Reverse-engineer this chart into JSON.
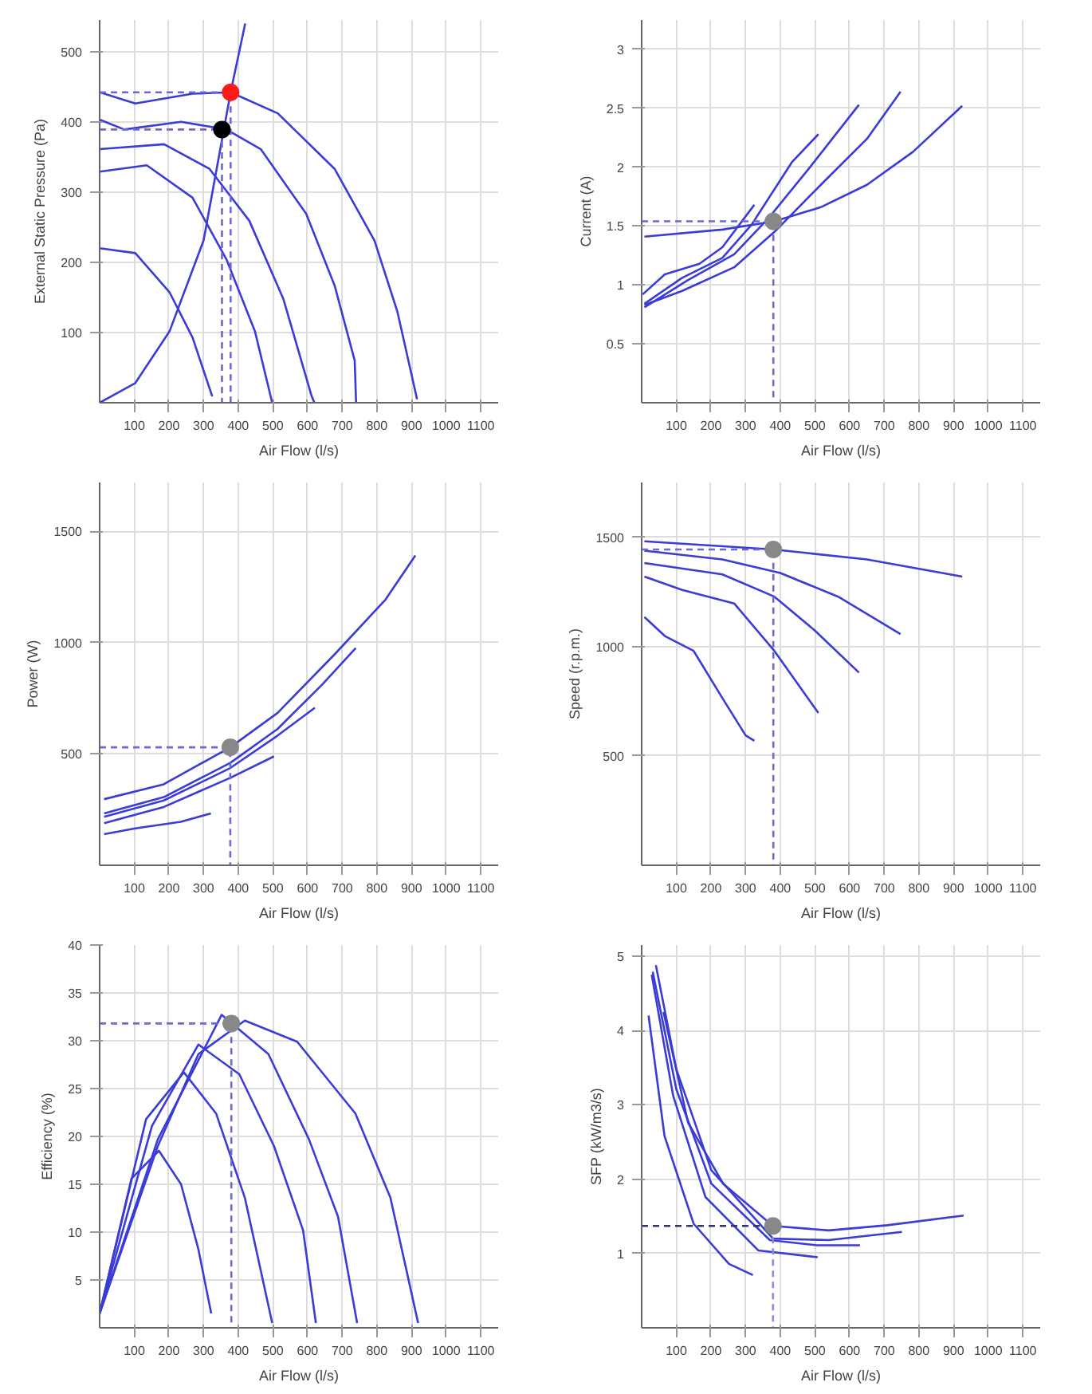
{
  "chart_data": [
    {
      "type": "line",
      "xlabel": "Air Flow (l/s)",
      "ylabel": "External Static Pressure (Pa)",
      "xlim": [
        0,
        1150
      ],
      "ylim": [
        0,
        545
      ],
      "xticks": [
        100,
        200,
        300,
        400,
        500,
        600,
        700,
        800,
        900,
        1000,
        1100
      ],
      "yticks": [
        100,
        200,
        300,
        400,
        500
      ],
      "grid": true,
      "marker": "none",
      "line_style": "solid",
      "series": [
        {
          "color": "#3b3bd6",
          "x": [
            0,
            103,
            268,
            378,
            514,
            678,
            793,
            859,
            916
          ],
          "values": [
            442,
            426,
            440,
            442,
            412,
            333,
            231,
            130,
            5
          ]
        },
        {
          "color": "#3b3bd6",
          "x": [
            0,
            71,
            235,
            366,
            465,
            596,
            678,
            736,
            740
          ],
          "values": [
            403,
            389,
            400,
            389,
            361,
            269,
            167,
            60,
            0
          ]
        },
        {
          "color": "#3b3bd6",
          "x": [
            0,
            186,
            317,
            432,
            530,
            612,
            620
          ],
          "values": [
            361,
            368,
            333,
            259,
            148,
            9,
            0
          ]
        },
        {
          "color": "#3b3bd6",
          "x": [
            0,
            136,
            268,
            366,
            448,
            498
          ],
          "values": [
            329,
            338,
            292,
            204,
            102,
            0
          ]
        },
        {
          "color": "#3b3bd6",
          "x": [
            0,
            103,
            202,
            268,
            325
          ],
          "values": [
            220,
            213,
            157,
            93,
            9
          ]
        },
        {
          "color": "#3b3bd6",
          "x": [
            0,
            103,
            202,
            300,
            378,
            420
          ],
          "values": [
            0,
            28,
            102,
            231,
            442,
            540
          ]
        },
        {
          "color": "#6a6ad0",
          "line_style": "dashed",
          "x": [
            0,
            378,
            378
          ],
          "values": [
            442,
            442,
            0
          ]
        },
        {
          "color": "#6a6ad0",
          "line_style": "dashed",
          "x": [
            0,
            353,
            353
          ],
          "values": [
            389,
            389,
            0
          ]
        },
        {
          "type": "scatter",
          "marker": "circle",
          "color": "#ff1a1a",
          "x": [
            378
          ],
          "values": [
            442
          ]
        },
        {
          "type": "scatter",
          "marker": "circle",
          "color": "#000000",
          "x": [
            353
          ],
          "values": [
            389
          ]
        }
      ]
    },
    {
      "type": "line",
      "xlabel": "Air Flow (l/s)",
      "ylabel": "Current (A)",
      "xlim": [
        0,
        1150
      ],
      "ylim": [
        0,
        3.25
      ],
      "xticks": [
        100,
        200,
        300,
        400,
        500,
        600,
        700,
        800,
        900,
        1000,
        1100
      ],
      "yticks": [
        0.5,
        1,
        1.5,
        2,
        2.5,
        3
      ],
      "grid": true,
      "marker": "none",
      "line_style": "solid",
      "series": [
        {
          "color": "#3b3bd6",
          "x": [
            8,
            233,
            383,
            517,
            650,
            783,
            925
          ],
          "values": [
            1.41,
            1.47,
            1.54,
            1.66,
            1.85,
            2.13,
            2.52
          ]
        },
        {
          "color": "#3b3bd6",
          "x": [
            8,
            117,
            267,
            383,
            517,
            650,
            747
          ],
          "values": [
            0.83,
            0.95,
            1.15,
            1.45,
            1.85,
            2.24,
            2.64
          ]
        },
        {
          "color": "#3b3bd6",
          "x": [
            8,
            133,
            267,
            367,
            483,
            627
          ],
          "values": [
            0.81,
            1.04,
            1.26,
            1.57,
            1.99,
            2.53
          ]
        },
        {
          "color": "#3b3bd6",
          "x": [
            8,
            117,
            233,
            317,
            433,
            510
          ],
          "values": [
            0.84,
            1.06,
            1.23,
            1.51,
            2.04,
            2.28
          ]
        },
        {
          "color": "#3b3bd6",
          "x": [
            3,
            67,
            167,
            233,
            325
          ],
          "values": [
            0.92,
            1.09,
            1.18,
            1.32,
            1.68
          ]
        },
        {
          "color": "#6a6ad0",
          "line_style": "dashed",
          "x": [
            0,
            380,
            380
          ],
          "values": [
            1.54,
            1.54,
            0
          ]
        },
        {
          "type": "scatter",
          "marker": "circle",
          "color": "#888888",
          "x": [
            380
          ],
          "values": [
            1.54
          ]
        }
      ]
    },
    {
      "type": "line",
      "xlabel": "Air Flow (l/s)",
      "ylabel": "Power (W)",
      "xlim": [
        0,
        1150
      ],
      "ylim": [
        0,
        1720
      ],
      "xticks": [
        100,
        200,
        300,
        400,
        500,
        600,
        700,
        800,
        900,
        1000,
        1100
      ],
      "yticks": [
        500,
        1000,
        1500
      ],
      "grid": true,
      "marker": "none",
      "line_style": "solid",
      "series": [
        {
          "color": "#3b3bd6",
          "x": [
            13,
            185,
            377,
            513,
            677,
            825,
            911
          ],
          "values": [
            297,
            364,
            530,
            684,
            946,
            1194,
            1392
          ]
        },
        {
          "color": "#3b3bd6",
          "x": [
            13,
            185,
            377,
            513,
            644,
            739
          ],
          "values": [
            233,
            306,
            460,
            612,
            815,
            976
          ]
        },
        {
          "color": "#3b3bd6",
          "x": [
            13,
            185,
            377,
            513,
            621
          ],
          "values": [
            218,
            291,
            437,
            582,
            708
          ]
        },
        {
          "color": "#3b3bd6",
          "x": [
            13,
            185,
            377,
            503
          ],
          "values": [
            189,
            262,
            393,
            489
          ]
        },
        {
          "color": "#3b3bd6",
          "x": [
            13,
            103,
            234,
            321
          ],
          "values": [
            140,
            166,
            195,
            233
          ]
        },
        {
          "color": "#6a6ad0",
          "line_style": "dashed",
          "x": [
            0,
            377,
            377
          ],
          "values": [
            530,
            530,
            0
          ]
        },
        {
          "type": "scatter",
          "marker": "circle",
          "color": "#888888",
          "x": [
            377
          ],
          "values": [
            530
          ]
        }
      ]
    },
    {
      "type": "line",
      "xlabel": "Air Flow (l/s)",
      "ylabel": "Speed (r.p.m.)",
      "xlim": [
        0,
        1150
      ],
      "ylim": [
        0,
        1750
      ],
      "xticks": [
        100,
        200,
        300,
        400,
        500,
        600,
        700,
        800,
        900,
        1000,
        1100
      ],
      "yticks": [
        500,
        1000,
        1500
      ],
      "grid": true,
      "marker": "none",
      "line_style": "solid",
      "series": [
        {
          "color": "#3b3bd6",
          "x": [
            8,
            380,
            650,
            925
          ],
          "values": [
            1481,
            1444,
            1398,
            1320
          ]
        },
        {
          "color": "#3b3bd6",
          "x": [
            8,
            233,
            400,
            567,
            747
          ],
          "values": [
            1438,
            1398,
            1336,
            1228,
            1057
          ]
        },
        {
          "color": "#3b3bd6",
          "x": [
            8,
            233,
            383,
            500,
            627
          ],
          "values": [
            1382,
            1330,
            1228,
            1073,
            881
          ]
        },
        {
          "color": "#3b3bd6",
          "x": [
            8,
            117,
            267,
            383,
            510
          ],
          "values": [
            1320,
            1259,
            1197,
            980,
            696
          ]
        },
        {
          "color": "#3b3bd6",
          "x": [
            8,
            67,
            150,
            233,
            300,
            325
          ],
          "values": [
            1135,
            1048,
            980,
            764,
            594,
            569
          ]
        },
        {
          "color": "#6a6ad0",
          "line_style": "dashed",
          "x": [
            0,
            380,
            380
          ],
          "values": [
            1444,
            1444,
            0
          ]
        },
        {
          "type": "scatter",
          "marker": "circle",
          "color": "#888888",
          "x": [
            380
          ],
          "values": [
            1444
          ]
        }
      ]
    },
    {
      "type": "line",
      "xlabel": "Air Flow (l/s)",
      "ylabel": "Efficiency (%)",
      "xlim": [
        0,
        1150
      ],
      "ylim": [
        0,
        40
      ],
      "xticks": [
        100,
        200,
        300,
        400,
        500,
        600,
        700,
        800,
        900,
        1000,
        1100
      ],
      "yticks": [
        5,
        10,
        15,
        20,
        25,
        30,
        35,
        40
      ],
      "grid": true,
      "marker": "none",
      "line_style": "solid",
      "series": [
        {
          "color": "#3b3bd6",
          "x": [
            0,
            168,
            285,
            419,
            570,
            738,
            839,
            919
          ],
          "values": [
            1.5,
            19.0,
            28.6,
            32.1,
            29.9,
            22.4,
            13.6,
            0.5
          ]
        },
        {
          "color": "#3b3bd6",
          "x": [
            0,
            168,
            352,
            487,
            604,
            688,
            743
          ],
          "values": [
            1.5,
            19.7,
            32.7,
            28.6,
            19.7,
            11.6,
            0.5
          ]
        },
        {
          "color": "#3b3bd6",
          "x": [
            0,
            151,
            285,
            403,
            503,
            587,
            624
          ],
          "values": [
            1.5,
            21.1,
            29.6,
            26.5,
            19.0,
            10.2,
            0.5
          ]
        },
        {
          "color": "#3b3bd6",
          "x": [
            0,
            134,
            243,
            336,
            419,
            498
          ],
          "values": [
            1.5,
            21.8,
            26.7,
            22.4,
            13.6,
            0.5
          ]
        },
        {
          "color": "#3b3bd6",
          "x": [
            0,
            92,
            171,
            235,
            285,
            322
          ],
          "values": [
            1.5,
            15.6,
            18.5,
            15.0,
            8.2,
            1.5
          ]
        },
        {
          "color": "#6a6ad0",
          "line_style": "dashed",
          "x": [
            0,
            380,
            380
          ],
          "values": [
            31.8,
            31.8,
            0
          ]
        },
        {
          "type": "scatter",
          "marker": "circle",
          "color": "#888888",
          "x": [
            380
          ],
          "values": [
            31.8
          ]
        }
      ]
    },
    {
      "type": "line",
      "xlabel": "Air Flow (l/s)",
      "ylabel": "SFP (kW/m3/s)",
      "xlim": [
        0,
        1150
      ],
      "ylim": [
        0,
        5.15
      ],
      "xticks": [
        100,
        200,
        300,
        400,
        500,
        600,
        700,
        800,
        900,
        1000,
        1100
      ],
      "yticks": [
        1,
        2,
        3,
        4,
        5
      ],
      "grid": true,
      "marker": "none",
      "line_style": "solid",
      "series": [
        {
          "color": "#3b3bd6",
          "x": [
            63,
            134,
            235,
            379,
            540,
            709,
            929
          ],
          "values": [
            4.25,
            2.76,
            1.94,
            1.37,
            1.31,
            1.38,
            1.51
          ]
        },
        {
          "color": "#3b3bd6",
          "x": [
            41,
            100,
            201,
            379,
            540,
            751
          ],
          "values": [
            4.88,
            3.48,
            2.12,
            1.2,
            1.18,
            1.29
          ]
        },
        {
          "color": "#3b3bd6",
          "x": [
            32,
            100,
            201,
            370,
            506,
            630
          ],
          "values": [
            4.79,
            3.21,
            1.94,
            1.18,
            1.11,
            1.11
          ]
        },
        {
          "color": "#3b3bd6",
          "x": [
            29,
            91,
            184,
            337,
            508
          ],
          "values": [
            4.75,
            3.12,
            1.76,
            1.04,
            0.95
          ]
        },
        {
          "color": "#3b3bd6",
          "x": [
            20,
            66,
            150,
            252,
            321
          ],
          "values": [
            4.2,
            2.58,
            1.4,
            0.86,
            0.71
          ]
        },
        {
          "color": "#333366",
          "line_style": "dashed",
          "x": [
            0,
            379
          ],
          "values": [
            1.37,
            1.37
          ]
        },
        {
          "color": "#8a8ad8",
          "line_style": "dashed",
          "x": [
            379,
            379
          ],
          "values": [
            1.37,
            0
          ]
        },
        {
          "type": "scatter",
          "marker": "circle",
          "color": "#888888",
          "x": [
            379
          ],
          "values": [
            1.37
          ]
        }
      ]
    }
  ]
}
